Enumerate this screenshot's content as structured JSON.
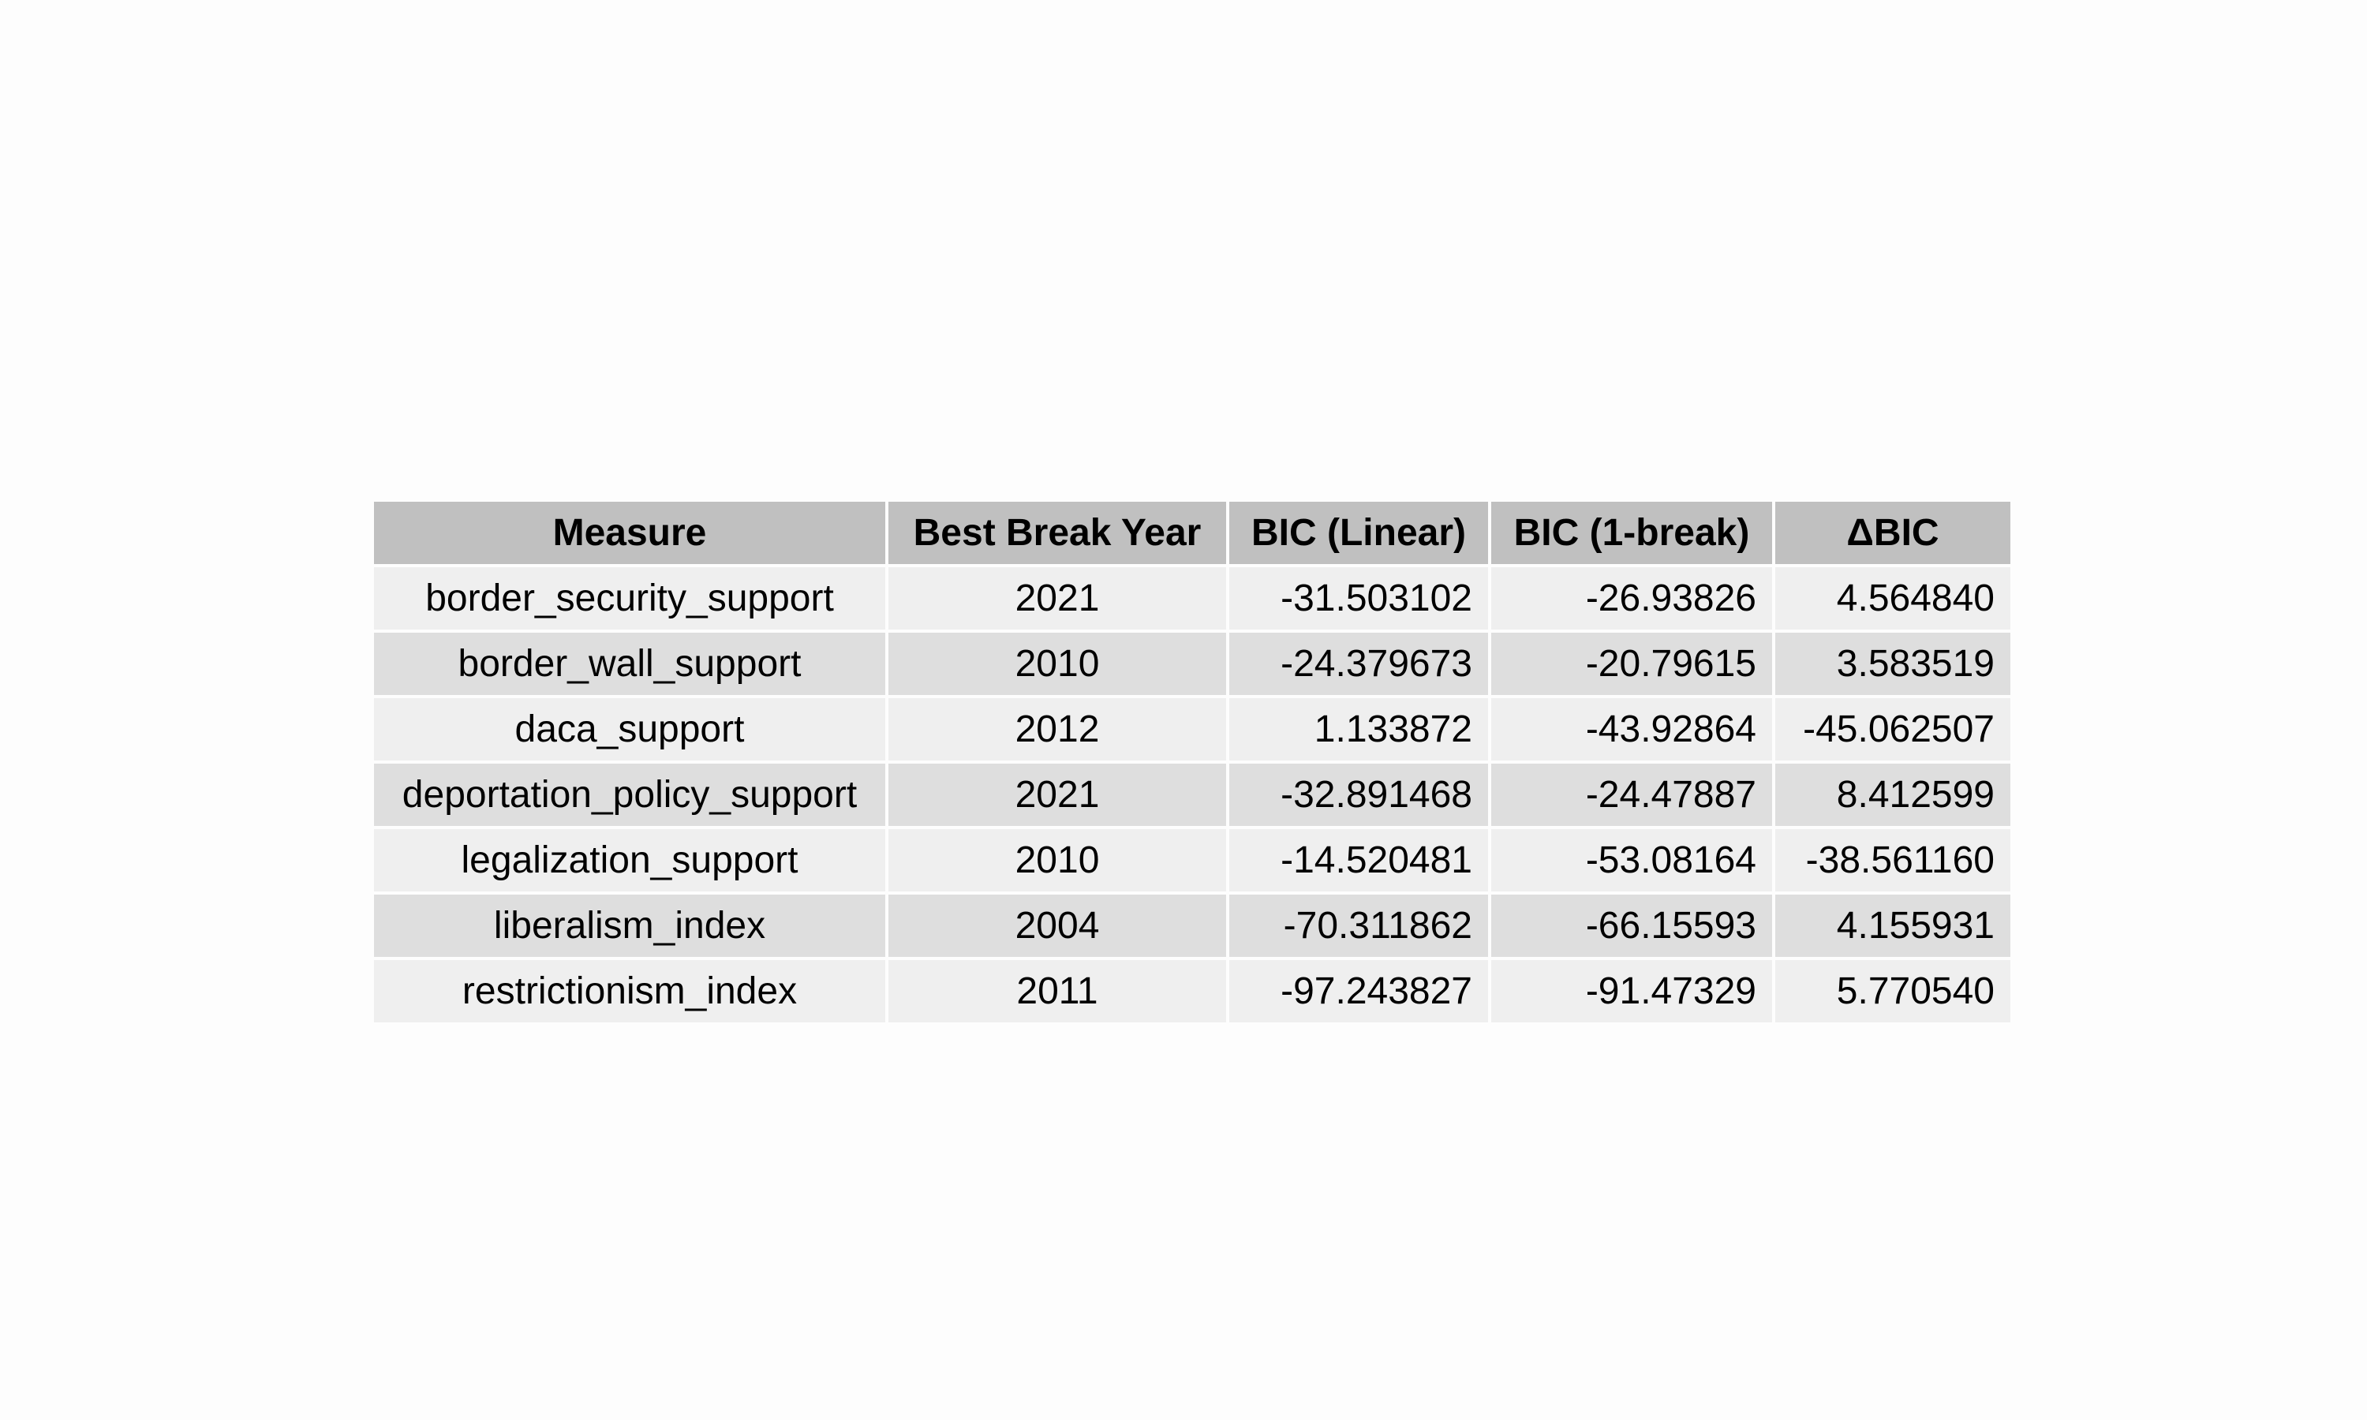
{
  "chart_data": {
    "type": "table",
    "columns": [
      "Measure",
      "Best Break Year",
      "BIC (Linear)",
      "BIC (1-break)",
      "ΔBIC"
    ],
    "rows": [
      [
        "border_security_support",
        "2021",
        "-31.503102",
        "-26.93826",
        "4.564840"
      ],
      [
        "border_wall_support",
        "2010",
        "-24.379673",
        "-20.79615",
        "3.583519"
      ],
      [
        "daca_support",
        "2012",
        "1.133872",
        "-43.92864",
        "-45.062507"
      ],
      [
        "deportation_policy_support",
        "2021",
        "-32.891468",
        "-24.47887",
        "8.412599"
      ],
      [
        "legalization_support",
        "2010",
        "-14.520481",
        "-53.08164",
        "-38.561160"
      ],
      [
        "liberalism_index",
        "2004",
        "-70.311862",
        "-66.15593",
        "4.155931"
      ],
      [
        "restrictionism_index",
        "2011",
        "-97.243827",
        "-91.47329",
        "5.770540"
      ]
    ],
    "colors": {
      "header_bg": "#c0c0c0",
      "row_odd_bg": "#efefef",
      "row_even_bg": "#dedede"
    }
  }
}
